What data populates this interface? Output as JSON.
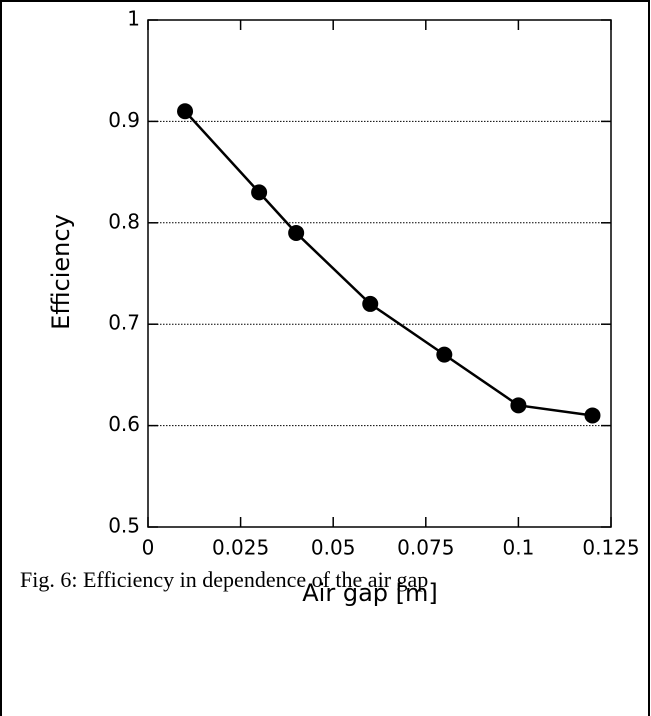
{
  "chart_data": {
    "type": "line",
    "x_label": "Air gap [m]",
    "y_label": "Efficiency",
    "caption": "Fig. 6: Efficiency in dependence of the air gap",
    "x": [
      0.01,
      0.03,
      0.04,
      0.06,
      0.08,
      0.1,
      0.12
    ],
    "series": [
      {
        "color": "#000000",
        "values": [
          0.91,
          0.83,
          0.79,
          0.72,
          0.67,
          0.62,
          0.61
        ]
      }
    ],
    "xlim": [
      0,
      0.125
    ],
    "xticks": [
      0,
      0.025,
      0.05,
      0.075,
      0.1,
      0.125
    ],
    "ylim": [
      0.5,
      1
    ],
    "yticks": [
      0.5,
      0.6,
      0.7,
      0.8,
      0.9,
      1
    ],
    "grid": true
  }
}
